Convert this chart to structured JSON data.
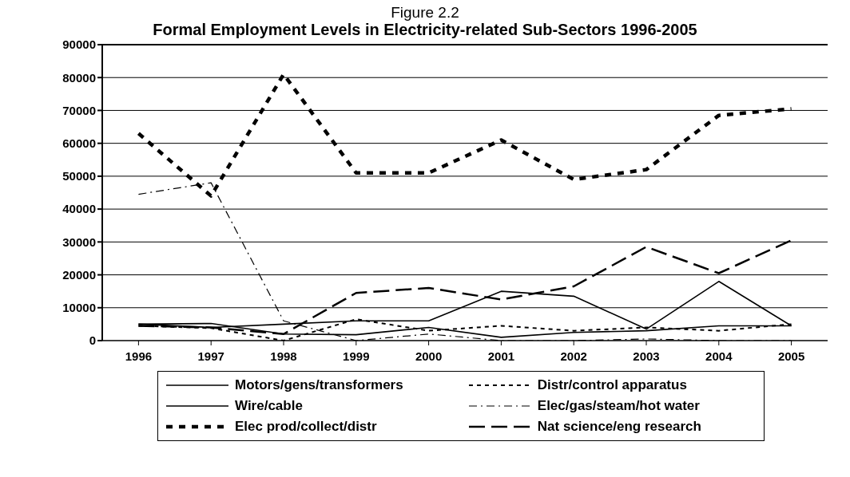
{
  "chart_data": {
    "type": "line",
    "title": "Figure 2.2",
    "subtitle": "Formal Employment Levels in Electricity-related Sub-Sectors 1996-2005",
    "categories": [
      "1996",
      "1997",
      "1998",
      "1999",
      "2000",
      "2001",
      "2002",
      "2003",
      "2004",
      "2005"
    ],
    "series": [
      {
        "name": "Motors/gens/transformers",
        "color": "#000000",
        "line_style": "solid",
        "values": [
          5000,
          5200,
          2000,
          1800,
          4000,
          1000,
          2500,
          3000,
          4500,
          4500
        ]
      },
      {
        "name": "Distr/control apparatus",
        "color": "#000000",
        "line_style": "dotted",
        "values": [
          4500,
          3800,
          0,
          6500,
          3000,
          4500,
          3000,
          4000,
          3000,
          5000
        ]
      },
      {
        "name": "Wire/cable",
        "color": "#000000",
        "line_style": "solid",
        "values": [
          5000,
          4000,
          5000,
          6000,
          6000,
          15000,
          13500,
          3500,
          18000,
          4500
        ]
      },
      {
        "name": "Elec/gas/steam/hot water",
        "color": "#000000",
        "line_style": "dashdot",
        "values": [
          44500,
          48000,
          6000,
          0,
          2000,
          0,
          0,
          500,
          0,
          0
        ]
      },
      {
        "name": "Elec prod/collect/distr",
        "color": "#000000",
        "line_style": "dashed",
        "values": [
          63000,
          44000,
          81000,
          51000,
          51000,
          61000,
          49000,
          52000,
          68500,
          70500
        ]
      },
      {
        "name": "Nat science/eng research",
        "color": "#000000",
        "line_style": "longdash",
        "values": [
          4500,
          4000,
          2000,
          14500,
          16000,
          12500,
          16500,
          28500,
          20500,
          30500
        ]
      }
    ],
    "ylim": [
      0,
      90000
    ],
    "yticks": [
      0,
      10000,
      20000,
      30000,
      40000,
      50000,
      60000,
      70000,
      80000,
      90000
    ],
    "grid": "y",
    "legend": "bottom"
  }
}
